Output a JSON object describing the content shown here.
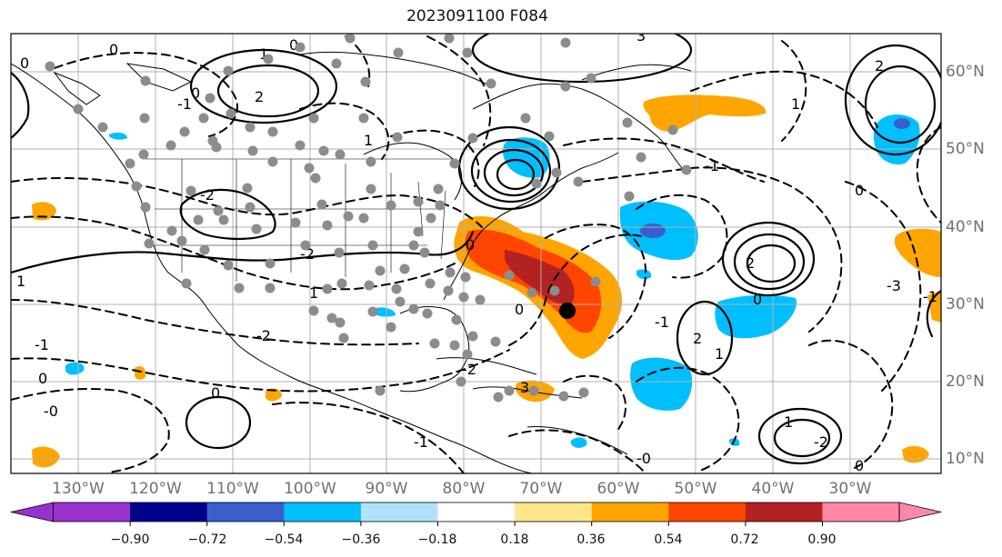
{
  "title": "2023091100 F084",
  "map": {
    "lon_labels": [
      "130°W",
      "120°W",
      "110°W",
      "100°W",
      "90°W",
      "80°W",
      "70°W",
      "60°W",
      "50°W",
      "40°W",
      "30°W"
    ],
    "lat_labels": [
      "60°N",
      "50°N",
      "40°N",
      "30°N",
      "20°N",
      "10°N"
    ],
    "contour_labels": [
      "0",
      "1",
      "-1",
      "2",
      "-2",
      "3",
      "-3",
      "0",
      "0",
      "2",
      "1",
      "1",
      "-1",
      "0",
      "-0",
      "-2",
      "1",
      "-2",
      "0",
      "-1",
      "-2",
      "0",
      "-1",
      "0",
      "-0",
      "0",
      "0",
      "3",
      "2",
      "-2",
      "1",
      "0",
      "-1",
      "1",
      "2",
      "0",
      "-1",
      "1"
    ],
    "colors": {
      "grid": "#b0b0b0",
      "coast": "#000000",
      "obs_marker": "#8c8c8c",
      "storm_center": "#000000"
    }
  },
  "colorbar": {
    "ticks": [
      "−0.90",
      "−0.72",
      "−0.54",
      "−0.36",
      "−0.18",
      "0.18",
      "0.36",
      "0.54",
      "0.72",
      "0.90"
    ],
    "colors": [
      "#9932cc",
      "#00008b",
      "#3a5fcd",
      "#00bfff",
      "#b0e2ff",
      "#ffffff",
      "#ffe68a",
      "#ffa500",
      "#ff4500",
      "#b22222",
      "#ff88aa"
    ]
  }
}
